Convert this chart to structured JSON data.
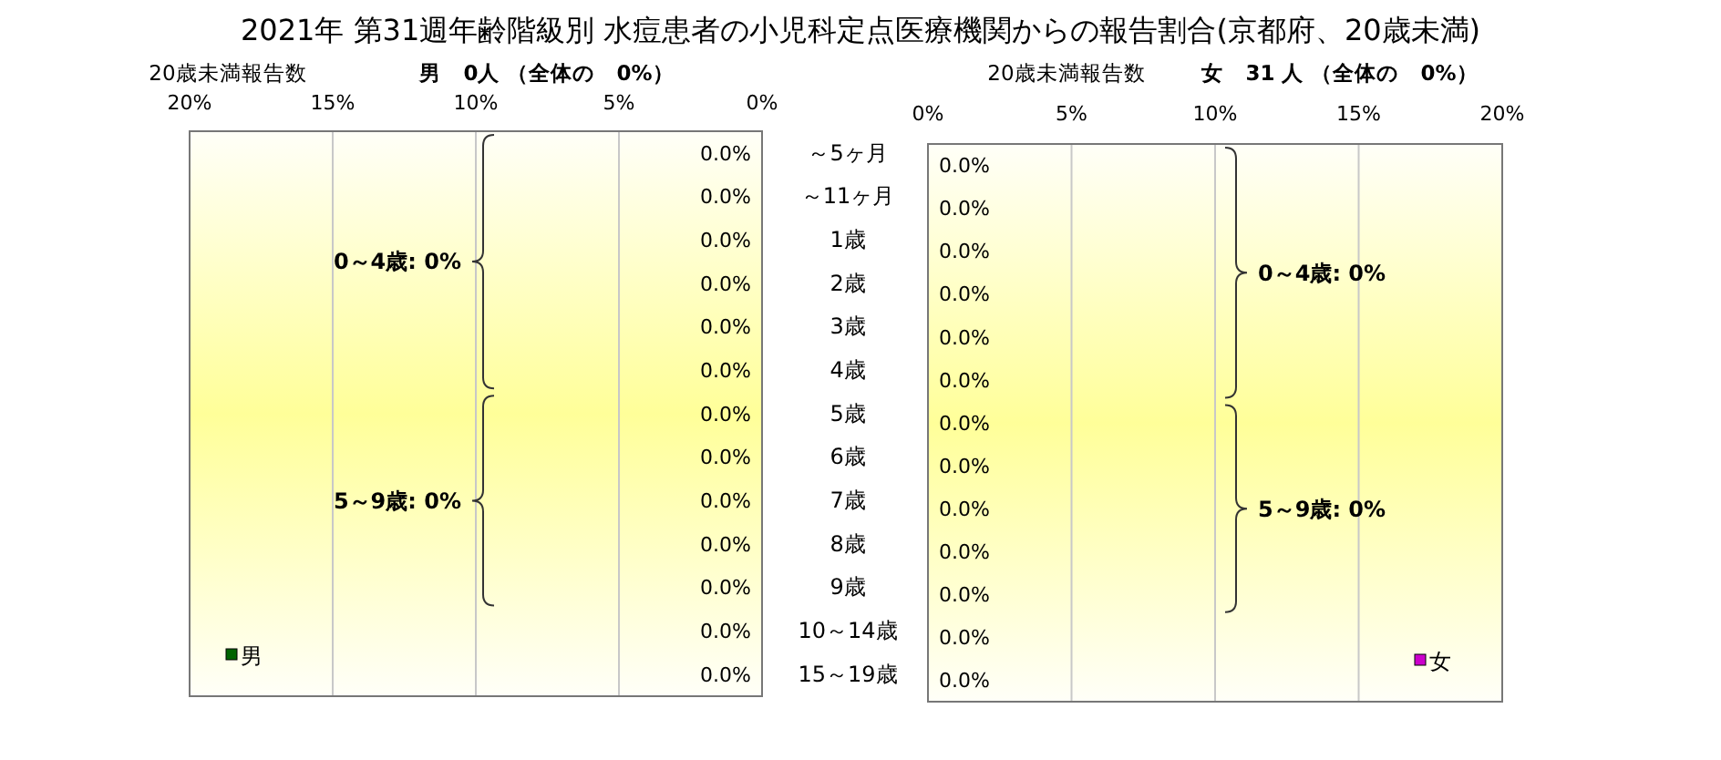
{
  "chart_data": [
    {
      "type": "bar",
      "orientation": "horizontal",
      "title": "2021年 第31週年齢階級別 水痘患者の小児科定点医療機関からの報告割合(京都府、20歳未満)",
      "subtitle": "20歳未満報告数",
      "annotations": [
        "男　0人 （全体の　0%）",
        "0～4歳: 0%",
        "5～9歳: 0%"
      ],
      "categories": [
        "～5ヶ月",
        "～11ヶ月",
        "1歳",
        "2歳",
        "3歳",
        "4歳",
        "5歳",
        "6歳",
        "7歳",
        "8歳",
        "9歳",
        "10～14歳",
        "15～19歳"
      ],
      "series": [
        {
          "name": "男",
          "color": "#006400",
          "values": [
            0,
            0,
            0,
            0,
            0,
            0,
            0,
            0,
            0,
            0,
            0,
            0,
            0
          ],
          "value_labels": [
            "0.0%",
            "0.0%",
            "0.0%",
            "0.0%",
            "0.0%",
            "0.0%",
            "0.0%",
            "0.0%",
            "0.0%",
            "0.0%",
            "0.0%",
            "0.0%",
            "0.0%"
          ]
        }
      ],
      "xlim": [
        20,
        0
      ],
      "xticks": [
        {
          "value": 20,
          "label": "20%"
        },
        {
          "value": 15,
          "label": "15%"
        },
        {
          "value": 10,
          "label": "10%"
        },
        {
          "value": 5,
          "label": "5%"
        },
        {
          "value": 0,
          "label": "0%"
        }
      ],
      "grid": "x",
      "legend": "bottom left"
    },
    {
      "type": "bar",
      "orientation": "horizontal",
      "subtitle": "20歳未満報告数",
      "annotations": [
        "女　31 人 （全体の　0%）",
        "0～4歳: 0%",
        "5～9歳: 0%"
      ],
      "categories": [
        null,
        null,
        null,
        null,
        null,
        null,
        null,
        null,
        null,
        null,
        null,
        null,
        null
      ],
      "series": [
        {
          "name": "女",
          "color": "#cc00cc",
          "values": [
            0,
            0,
            0,
            0,
            0,
            0,
            0,
            0,
            0,
            0,
            0,
            0,
            0
          ],
          "value_labels": [
            "0.0%",
            "0.0%",
            "0.0%",
            "0.0%",
            "0.0%",
            "0.0%",
            "0.0%",
            "0.0%",
            "0.0%",
            "0.0%",
            "0.0%",
            "0.0%",
            "0.0%"
          ]
        }
      ],
      "xlim": [
        0,
        20
      ],
      "xticks": [
        {
          "value": 0,
          "label": "0%"
        },
        {
          "value": 5,
          "label": "5%"
        },
        {
          "value": 10,
          "label": "10%"
        },
        {
          "value": 15,
          "label": "15%"
        },
        {
          "value": 20,
          "label": "20%"
        }
      ],
      "grid": "x",
      "legend": "bottom right"
    }
  ]
}
